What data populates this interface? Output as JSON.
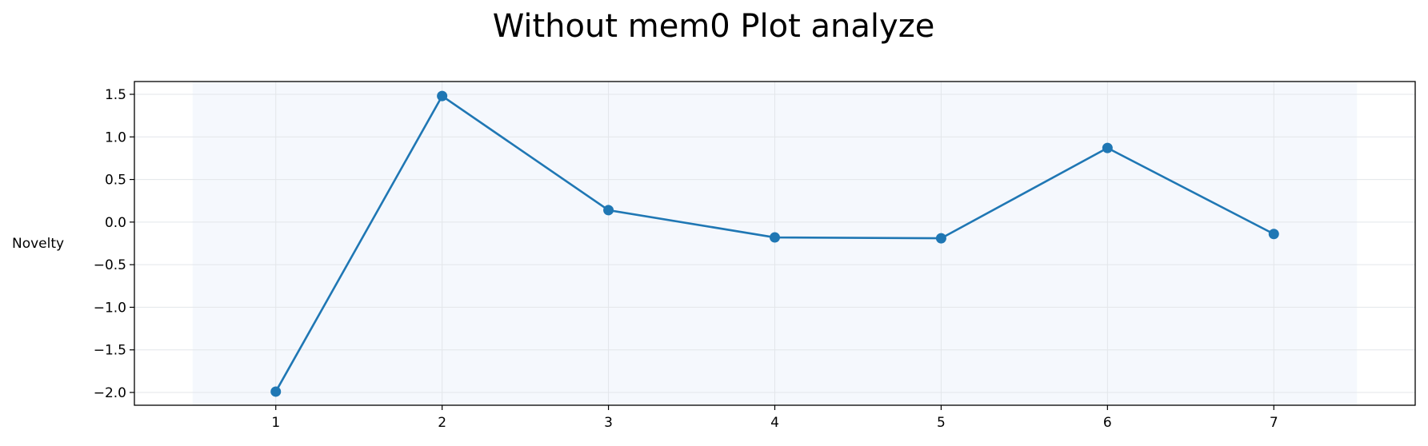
{
  "chart_data": {
    "type": "line",
    "title": "Without mem0 Plot analyze",
    "xlabel": "",
    "ylabel": "Novelty",
    "x": [
      1,
      2,
      3,
      4,
      5,
      6,
      7
    ],
    "series": [
      {
        "values": [
          -1.99,
          1.48,
          0.14,
          -0.18,
          -0.19,
          0.87,
          -0.14
        ]
      }
    ],
    "x_ticks": [
      "1",
      "2",
      "3",
      "4",
      "5",
      "6",
      "7"
    ],
    "y_ticks": [
      "−2.0",
      "−1.5",
      "−1.0",
      "−0.5",
      "0.0",
      "0.5",
      "1.0",
      "1.5"
    ],
    "y_tick_values": [
      -2.0,
      -1.5,
      -1.0,
      -0.5,
      0.0,
      0.5,
      1.0,
      1.5
    ],
    "xlim": [
      0.15,
      7.85
    ],
    "ylim": [
      -2.15,
      1.65
    ],
    "shaded_band_x": [
      0.5,
      7.5
    ],
    "grid": true,
    "line_color": "#1f77b4",
    "band_color": "#f5f8fd",
    "grid_color": "#e3e6ea"
  }
}
